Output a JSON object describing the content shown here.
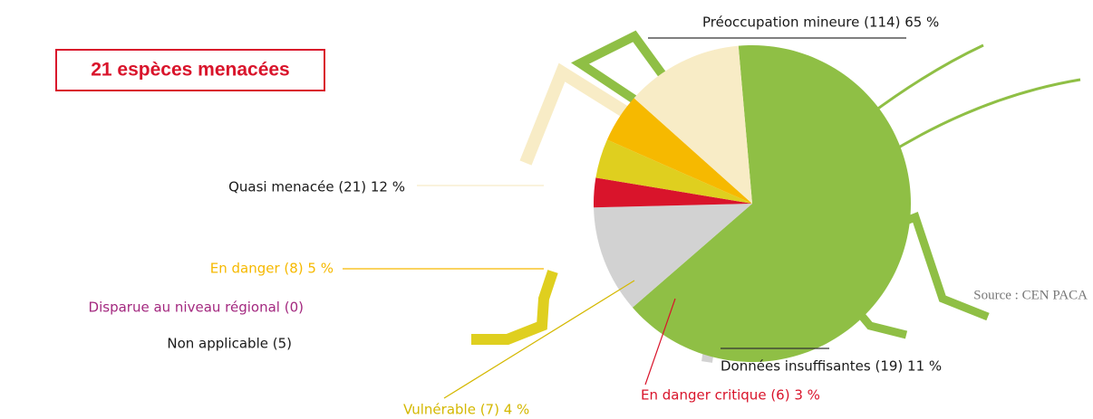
{
  "chart_data": {
    "type": "pie",
    "title": "21 espèces menacées",
    "source": "Source : CEN PACA",
    "categories": [
      "Préoccupation mineure (114) 65 %",
      "Données insuffisantes (19) 11 %",
      "En danger critique (6) 3 %",
      "Vulnérable (7) 4 %",
      "En danger  (8) 5 %",
      "Quasi menacée (21) 12 %",
      "Disparue au niveau régional (0)",
      "Non applicable (5)"
    ],
    "values": [
      65,
      11,
      3,
      4,
      5,
      12,
      0,
      null
    ],
    "colors": [
      "#8fbf45",
      "#d2d2d2",
      "#d9142b",
      "#dfcf1f",
      "#f6b900",
      "#f8ecc6",
      "#a3287f",
      "#1a1a1a"
    ]
  }
}
